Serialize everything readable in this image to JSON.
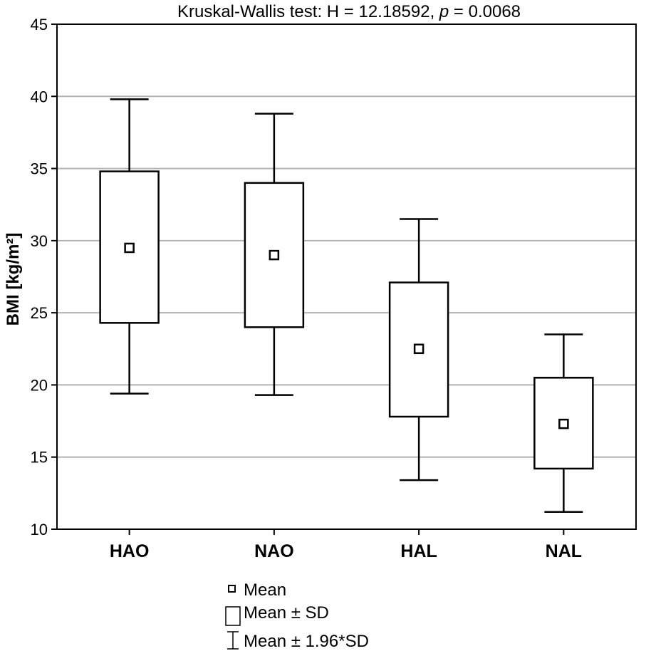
{
  "chart_data": {
    "type": "box",
    "title_prefix": "Kruskal-Wallis test: H = 12.18592, ",
    "title_p": "p",
    "title_suffix": " = 0.0068",
    "ylabel": "BMI [kg/m²]",
    "xlabel": "",
    "ylim": [
      10,
      45
    ],
    "yticks": [
      10,
      15,
      20,
      25,
      30,
      35,
      40,
      45
    ],
    "grid": true,
    "categories": [
      "HAO",
      "NAO",
      "HAL",
      "NAL"
    ],
    "series": [
      {
        "category": "HAO",
        "mean": 29.5,
        "sd_low": 24.3,
        "sd_high": 34.8,
        "ci_low": 19.4,
        "ci_high": 39.8
      },
      {
        "category": "NAO",
        "mean": 29.0,
        "sd_low": 24.0,
        "sd_high": 34.0,
        "ci_low": 19.3,
        "ci_high": 38.8
      },
      {
        "category": "HAL",
        "mean": 22.5,
        "sd_low": 17.8,
        "sd_high": 27.1,
        "ci_low": 13.4,
        "ci_high": 31.5
      },
      {
        "category": "NAL",
        "mean": 17.3,
        "sd_low": 14.2,
        "sd_high": 20.5,
        "ci_low": 11.2,
        "ci_high": 23.5
      }
    ],
    "legend": {
      "placement": "bottom",
      "items": [
        {
          "icon": "mean-square-icon",
          "label": "Mean"
        },
        {
          "icon": "sd-box-icon",
          "label": "Mean ± SD"
        },
        {
          "icon": "whisker-icon",
          "label": "Mean ± 1.96*SD"
        }
      ]
    },
    "colors": {
      "grid": "#b3b3b3",
      "line": "#000000",
      "background": "#ffffff"
    }
  }
}
